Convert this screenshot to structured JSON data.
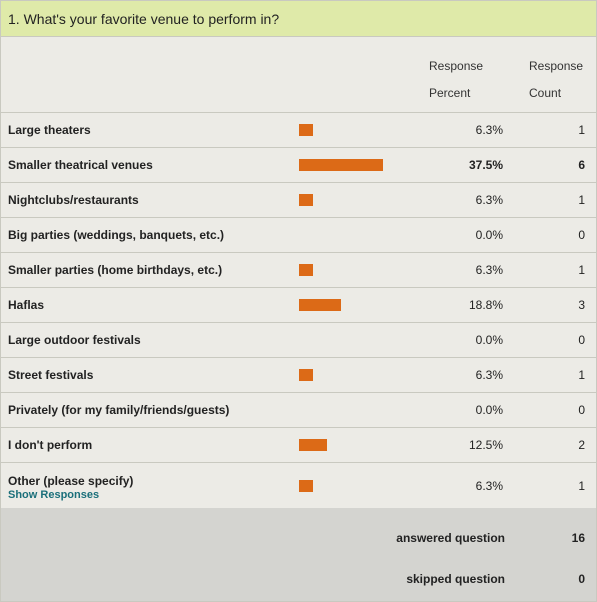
{
  "question": "1. What's your favorite venue to perform in?",
  "headers": {
    "percent_line1": "Response",
    "percent_line2": "Percent",
    "count_line1": "Response",
    "count_line2": "Count"
  },
  "bar_color": "#dc6a17",
  "rows": [
    {
      "label": "Large theaters",
      "percent": "6.3%",
      "count": "1",
      "fraction": 0.063
    },
    {
      "label": "Smaller theatrical venues",
      "percent": "37.5%",
      "count": "6",
      "fraction": 0.375
    },
    {
      "label": "Nightclubs/restaurants",
      "percent": "6.3%",
      "count": "1",
      "fraction": 0.063
    },
    {
      "label": "Big parties (weddings, banquets, etc.)",
      "percent": "0.0%",
      "count": "0",
      "fraction": 0.0
    },
    {
      "label": "Smaller parties (home birthdays, etc.)",
      "percent": "6.3%",
      "count": "1",
      "fraction": 0.063
    },
    {
      "label": "Haflas",
      "percent": "18.8%",
      "count": "3",
      "fraction": 0.188
    },
    {
      "label": "Large outdoor festivals",
      "percent": "0.0%",
      "count": "0",
      "fraction": 0.0
    },
    {
      "label": "Street festivals",
      "percent": "6.3%",
      "count": "1",
      "fraction": 0.063
    },
    {
      "label": "Privately (for my family/friends/guests)",
      "percent": "0.0%",
      "count": "0",
      "fraction": 0.0
    },
    {
      "label": "I don't perform",
      "percent": "12.5%",
      "count": "2",
      "fraction": 0.125
    },
    {
      "label": "Other (please specify)",
      "link": "Show Responses",
      "percent": "6.3%",
      "count": "1",
      "fraction": 0.063
    }
  ],
  "summary": {
    "answered_label": "answered question",
    "answered_value": "16",
    "skipped_label": "skipped question",
    "skipped_value": "0"
  }
}
